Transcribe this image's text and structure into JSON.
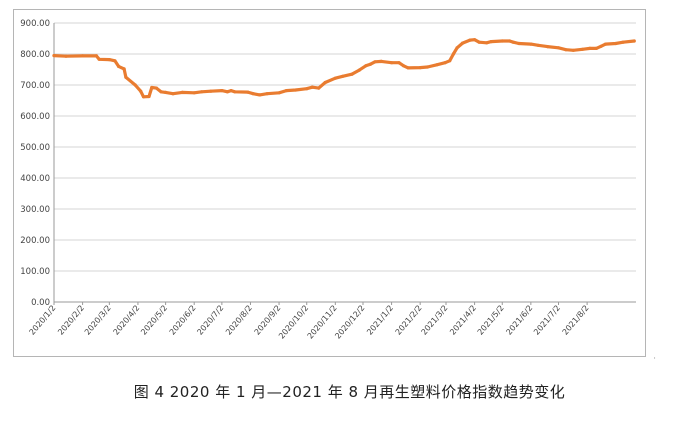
{
  "caption": "图 4  2020 年 1 月—2021 年 8 月再生塑料价格指数趋势变化",
  "chart_data": {
    "type": "line",
    "title": "",
    "xlabel": "",
    "ylabel": "",
    "ylim": [
      0,
      900
    ],
    "y_ticks": [
      "0.00",
      "100.00",
      "200.00",
      "300.00",
      "400.00",
      "500.00",
      "600.00",
      "700.00",
      "800.00",
      "900.00"
    ],
    "x_ticks": [
      "2020/1/2",
      "2020/2/2",
      "2020/3/2",
      "2020/4/2",
      "2020/5/2",
      "2020/6/2",
      "2020/7/2",
      "2020/8/2",
      "2020/9/2",
      "2020/10/2",
      "2020/11/2",
      "2020/12/2",
      "2021/1/2",
      "2021/2/2",
      "2021/3/2",
      "2021/4/2",
      "2021/5/2",
      "2021/6/2",
      "2021/7/2",
      "2021/8/2"
    ],
    "grid": true,
    "legend": "none",
    "series": [
      {
        "color": "#E97C30",
        "points": [
          [
            "2020-01-02",
            795
          ],
          [
            "2020-01-15",
            793
          ],
          [
            "2020-02-02",
            794
          ],
          [
            "2020-02-17",
            794
          ],
          [
            "2020-02-20",
            783
          ],
          [
            "2020-03-02",
            782
          ],
          [
            "2020-03-08",
            778
          ],
          [
            "2020-03-12",
            760
          ],
          [
            "2020-03-18",
            752
          ],
          [
            "2020-03-20",
            725
          ],
          [
            "2020-03-30",
            700
          ],
          [
            "2020-04-05",
            680
          ],
          [
            "2020-04-08",
            662
          ],
          [
            "2020-04-14",
            663
          ],
          [
            "2020-04-17",
            692
          ],
          [
            "2020-04-22",
            690
          ],
          [
            "2020-04-27",
            678
          ],
          [
            "2020-05-02",
            676
          ],
          [
            "2020-05-10",
            672
          ],
          [
            "2020-05-20",
            676
          ],
          [
            "2020-06-02",
            675
          ],
          [
            "2020-06-10",
            678
          ],
          [
            "2020-06-20",
            680
          ],
          [
            "2020-07-02",
            682
          ],
          [
            "2020-07-08",
            678
          ],
          [
            "2020-07-12",
            682
          ],
          [
            "2020-07-16",
            678
          ],
          [
            "2020-07-30",
            677
          ],
          [
            "2020-08-05",
            672
          ],
          [
            "2020-08-12",
            668
          ],
          [
            "2020-08-20",
            672
          ],
          [
            "2020-09-02",
            675
          ],
          [
            "2020-09-10",
            682
          ],
          [
            "2020-09-20",
            684
          ],
          [
            "2020-10-02",
            688
          ],
          [
            "2020-10-08",
            693
          ],
          [
            "2020-10-15",
            690
          ],
          [
            "2020-10-22",
            708
          ],
          [
            "2020-11-02",
            722
          ],
          [
            "2020-11-10",
            728
          ],
          [
            "2020-11-20",
            735
          ],
          [
            "2020-11-28",
            748
          ],
          [
            "2020-12-05",
            762
          ],
          [
            "2020-12-10",
            767
          ],
          [
            "2020-12-15",
            775
          ],
          [
            "2020-12-22",
            776
          ],
          [
            "2021-01-02",
            772
          ],
          [
            "2021-01-10",
            772
          ],
          [
            "2021-01-15",
            762
          ],
          [
            "2021-01-20",
            755
          ],
          [
            "2021-02-02",
            756
          ],
          [
            "2021-02-10",
            758
          ],
          [
            "2021-02-20",
            765
          ],
          [
            "2021-03-01",
            772
          ],
          [
            "2021-03-06",
            778
          ],
          [
            "2021-03-10",
            800
          ],
          [
            "2021-03-14",
            820
          ],
          [
            "2021-03-20",
            835
          ],
          [
            "2021-03-28",
            845
          ],
          [
            "2021-04-02",
            846
          ],
          [
            "2021-04-07",
            838
          ],
          [
            "2021-04-15",
            836
          ],
          [
            "2021-04-20",
            840
          ],
          [
            "2021-05-02",
            842
          ],
          [
            "2021-05-10",
            842
          ],
          [
            "2021-05-14",
            838
          ],
          [
            "2021-05-20",
            834
          ],
          [
            "2021-06-02",
            832
          ],
          [
            "2021-06-10",
            828
          ],
          [
            "2021-06-20",
            824
          ],
          [
            "2021-07-02",
            820
          ],
          [
            "2021-07-10",
            814
          ],
          [
            "2021-07-18",
            812
          ],
          [
            "2021-07-28",
            815
          ],
          [
            "2021-08-05",
            818
          ],
          [
            "2021-08-12",
            818
          ],
          [
            "2021-08-17",
            825
          ],
          [
            "2021-08-22",
            832
          ],
          [
            "2021-09-02",
            834
          ],
          [
            "2021-09-10",
            838
          ],
          [
            "2021-09-22",
            842
          ]
        ]
      }
    ]
  }
}
